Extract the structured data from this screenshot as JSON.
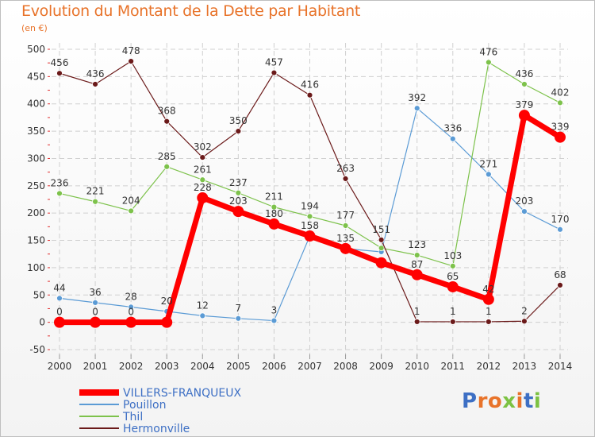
{
  "header": {
    "title": "Evolution du Montant de la Dette par Habitant",
    "subtitle": "(en €)"
  },
  "logo": {
    "text": "Proxiti",
    "colors": [
      "#3d6fc4",
      "#e8732a",
      "#e8732a",
      "#7cc242",
      "#e8732a",
      "#3d6fc4",
      "#7cc242"
    ]
  },
  "chart_data": {
    "type": "line",
    "title": "Evolution du Montant de la Dette par Habitant",
    "subtitle": "(en €)",
    "xlabel": "",
    "ylabel": "",
    "x": [
      "2000",
      "2001",
      "2002",
      "2003",
      "2004",
      "2005",
      "2006",
      "2007",
      "2008",
      "2009",
      "2010",
      "2011",
      "2012",
      "2013",
      "2014"
    ],
    "ylim": [
      -50,
      500
    ],
    "yticks": [
      -50,
      0,
      50,
      100,
      150,
      200,
      250,
      300,
      350,
      400,
      450,
      500
    ],
    "grid": true,
    "legend_position": "bottom-left",
    "series": [
      {
        "name": "Pouillon",
        "color": "#5b9bd5",
        "values": [
          44,
          36,
          28,
          20,
          12,
          7,
          3,
          158,
          135,
          129,
          392,
          336,
          271,
          203,
          170
        ],
        "labels": [
          "44",
          "36",
          "28",
          "20",
          "12",
          "7",
          "3",
          "158",
          "135",
          "",
          "392",
          "336",
          "271",
          "203",
          "170"
        ]
      },
      {
        "name": "Thil",
        "color": "#7dc24b",
        "values": [
          236,
          221,
          204,
          285,
          261,
          237,
          211,
          194,
          177,
          136,
          123,
          103,
          476,
          436,
          402
        ],
        "labels": [
          "236",
          "221",
          "204",
          "285",
          "261",
          "237",
          "211",
          "194",
          "177",
          "",
          "123",
          "103",
          "476",
          "436",
          "402"
        ]
      },
      {
        "name": "Hermonville",
        "color": "#6b1a1a",
        "values": [
          456,
          436,
          478,
          368,
          302,
          350,
          457,
          416,
          263,
          151,
          1,
          1,
          1,
          2,
          68
        ],
        "labels": [
          "456",
          "436",
          "478",
          "368",
          "302",
          "350",
          "457",
          "416",
          "263",
          "151",
          "1",
          "1",
          "1",
          "2",
          "68"
        ]
      },
      {
        "name": "VILLERS-FRANQUEUX",
        "color": "#ff0000",
        "values": [
          0,
          0,
          0,
          0,
          228,
          203,
          180,
          158,
          135,
          109,
          87,
          65,
          42,
          379,
          339
        ],
        "labels": [
          "0",
          "0",
          "0",
          "",
          "228",
          "203",
          "180",
          "",
          "",
          "",
          "87",
          "65",
          "42",
          "379",
          "339"
        ]
      }
    ],
    "legend": [
      "VILLERS-FRANQUEUX",
      "Pouillon",
      "Thil",
      "Hermonville"
    ]
  }
}
